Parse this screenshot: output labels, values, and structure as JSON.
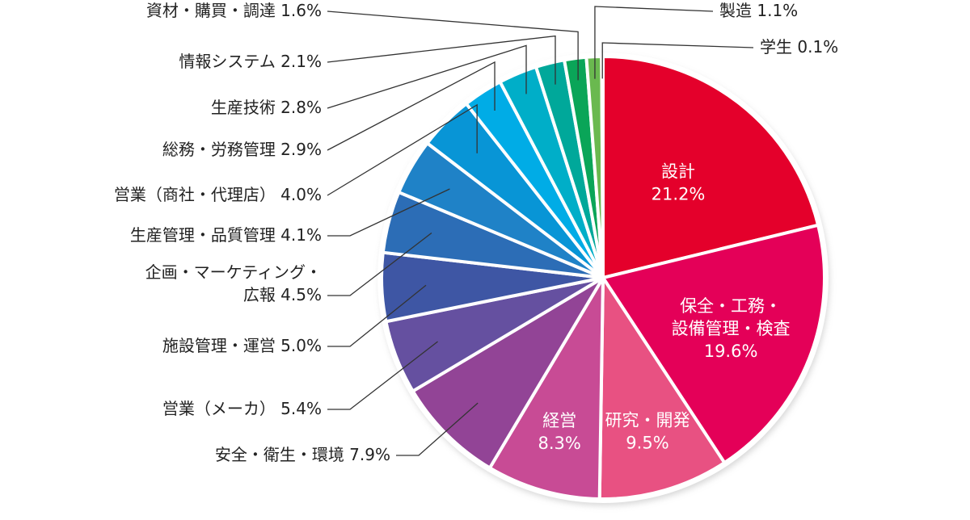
{
  "chart_data": {
    "type": "pie",
    "unit": "%",
    "direction": "clockwise-from-top",
    "slices": [
      {
        "label": "設計",
        "value": 21.2,
        "color": "#e4002b",
        "label_lines": [
          "設計",
          "21.2%"
        ],
        "placement": "inside"
      },
      {
        "label": "保全・工務・設備管理・検査",
        "value": 19.6,
        "color": "#e40058",
        "label_lines": [
          "保全・工務・",
          "設備管理・検査",
          "19.6%"
        ],
        "placement": "inside"
      },
      {
        "label": "研究・開発",
        "value": 9.5,
        "color": "#e85182",
        "label_lines": [
          "研究・開発",
          "9.5%"
        ],
        "placement": "inside"
      },
      {
        "label": "経営",
        "value": 8.3,
        "color": "#c84b95",
        "label_lines": [
          "経営",
          "8.3%"
        ],
        "placement": "inside"
      },
      {
        "label": "安全・衛生・環境",
        "value": 7.9,
        "color": "#924496",
        "label_lines": [
          "安全・衛生・環境 7.9%"
        ],
        "placement": "outside-left"
      },
      {
        "label": "営業（メーカ）",
        "value": 5.4,
        "color": "#6550a0",
        "label_lines": [
          "営業（メーカ） 5.4%"
        ],
        "placement": "outside-left"
      },
      {
        "label": "施設管理・運営",
        "value": 5.0,
        "color": "#3e56a4",
        "label_lines": [
          "施設管理・運営 5.0%"
        ],
        "placement": "outside-left"
      },
      {
        "label": "企画・マーケティング・広報",
        "value": 4.5,
        "color": "#2c6db6",
        "label_lines": [
          "企画・マーケティング・",
          "広報 4.5%"
        ],
        "placement": "outside-left"
      },
      {
        "label": "生産管理・品質管理",
        "value": 4.1,
        "color": "#1f82c7",
        "label_lines": [
          "生産管理・品質管理 4.1%"
        ],
        "placement": "outside-left"
      },
      {
        "label": "営業（商社・代理店）",
        "value": 4.0,
        "color": "#0895d6",
        "label_lines": [
          "営業（商社・代理店） 4.0%"
        ],
        "placement": "outside-left"
      },
      {
        "label": "総務・労務管理",
        "value": 2.9,
        "color": "#00ace6",
        "label_lines": [
          "総務・労務管理 2.9%"
        ],
        "placement": "outside-left"
      },
      {
        "label": "生産技術",
        "value": 2.8,
        "color": "#00aec8",
        "label_lines": [
          "生産技術 2.8%"
        ],
        "placement": "outside-left"
      },
      {
        "label": "情報システム",
        "value": 2.1,
        "color": "#00a89a",
        "label_lines": [
          "情報システム 2.1%"
        ],
        "placement": "outside-left"
      },
      {
        "label": "資材・購買・調達",
        "value": 1.6,
        "color": "#0aa558",
        "label_lines": [
          "資材・購買・調達 1.6%"
        ],
        "placement": "outside-left"
      },
      {
        "label": "製造",
        "value": 1.1,
        "color": "#6ab94f",
        "label_lines": [
          "製造 1.1%"
        ],
        "placement": "outside-right"
      },
      {
        "label": "学生",
        "value": 0.1,
        "color": "#c8e090",
        "label_lines": [
          "学生 0.1%"
        ],
        "placement": "outside-right"
      }
    ],
    "legend": "none"
  }
}
